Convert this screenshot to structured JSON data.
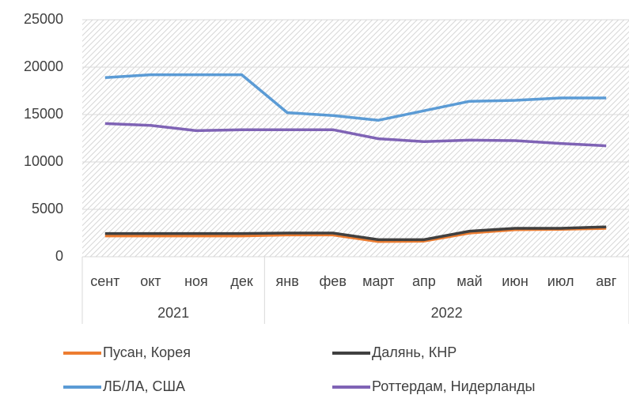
{
  "chart_data": {
    "type": "line",
    "categories": [
      "сент",
      "окт",
      "ноя",
      "дек",
      "янв",
      "фев",
      "март",
      "апр",
      "май",
      "июн",
      "июл",
      "авг"
    ],
    "category_groups": [
      {
        "name": "2021",
        "count": 4
      },
      {
        "name": "2022",
        "count": 8
      }
    ],
    "series": [
      {
        "name": "Пусан, Корея",
        "color": "#ed7d31",
        "values": [
          2200,
          2200,
          2200,
          2200,
          2300,
          2300,
          1600,
          1650,
          2500,
          2850,
          2900,
          3000
        ]
      },
      {
        "name": "Далянь, КНР",
        "color": "#404040",
        "values": [
          2450,
          2450,
          2450,
          2450,
          2500,
          2500,
          1800,
          1800,
          2700,
          3000,
          3000,
          3150
        ]
      },
      {
        "name": "ЛБ/ЛА, США",
        "color": "#5b9bd5",
        "values": [
          18900,
          19200,
          19200,
          19200,
          15200,
          14900,
          14400,
          15400,
          16400,
          16500,
          16750,
          16750
        ]
      },
      {
        "name": "Роттердам, Нидерланды",
        "color": "#7f63b5",
        "values": [
          14050,
          13850,
          13300,
          13400,
          13400,
          13400,
          12450,
          12150,
          12300,
          12250,
          11950,
          11700
        ]
      }
    ],
    "ylim": [
      0,
      25000
    ],
    "yticks": [
      0,
      5000,
      10000,
      15000,
      20000,
      25000
    ],
    "grid": true,
    "legend": "bottom"
  }
}
